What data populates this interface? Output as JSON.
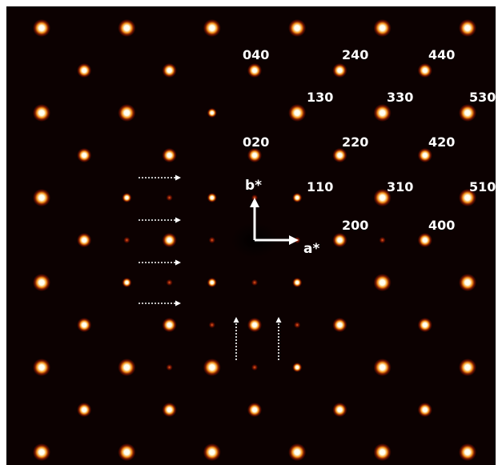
{
  "figure": {
    "background_color": "#0c0101",
    "spot_core_color": "#fffde6",
    "spot_glow_color": "#ff9a1a",
    "spot_halo_color": "#c82000",
    "weak_spot_color": "#e03a10",
    "annotation_color": "#ffffff"
  },
  "reflection_labels": [
    {
      "text": "040"
    },
    {
      "text": "240"
    },
    {
      "text": "440"
    },
    {
      "text": "130"
    },
    {
      "text": "330"
    },
    {
      "text": "530"
    },
    {
      "text": "020"
    },
    {
      "text": "220"
    },
    {
      "text": "420"
    },
    {
      "text": "110"
    },
    {
      "text": "310"
    },
    {
      "text": "510"
    },
    {
      "text": "200"
    },
    {
      "text": "400"
    }
  ],
  "axes": {
    "a_label": "a*",
    "b_label": "b*"
  },
  "markers": {
    "horizontal_arrow_count": 4,
    "vertical_arrow_count": 2,
    "style": "dotted-arrow"
  }
}
